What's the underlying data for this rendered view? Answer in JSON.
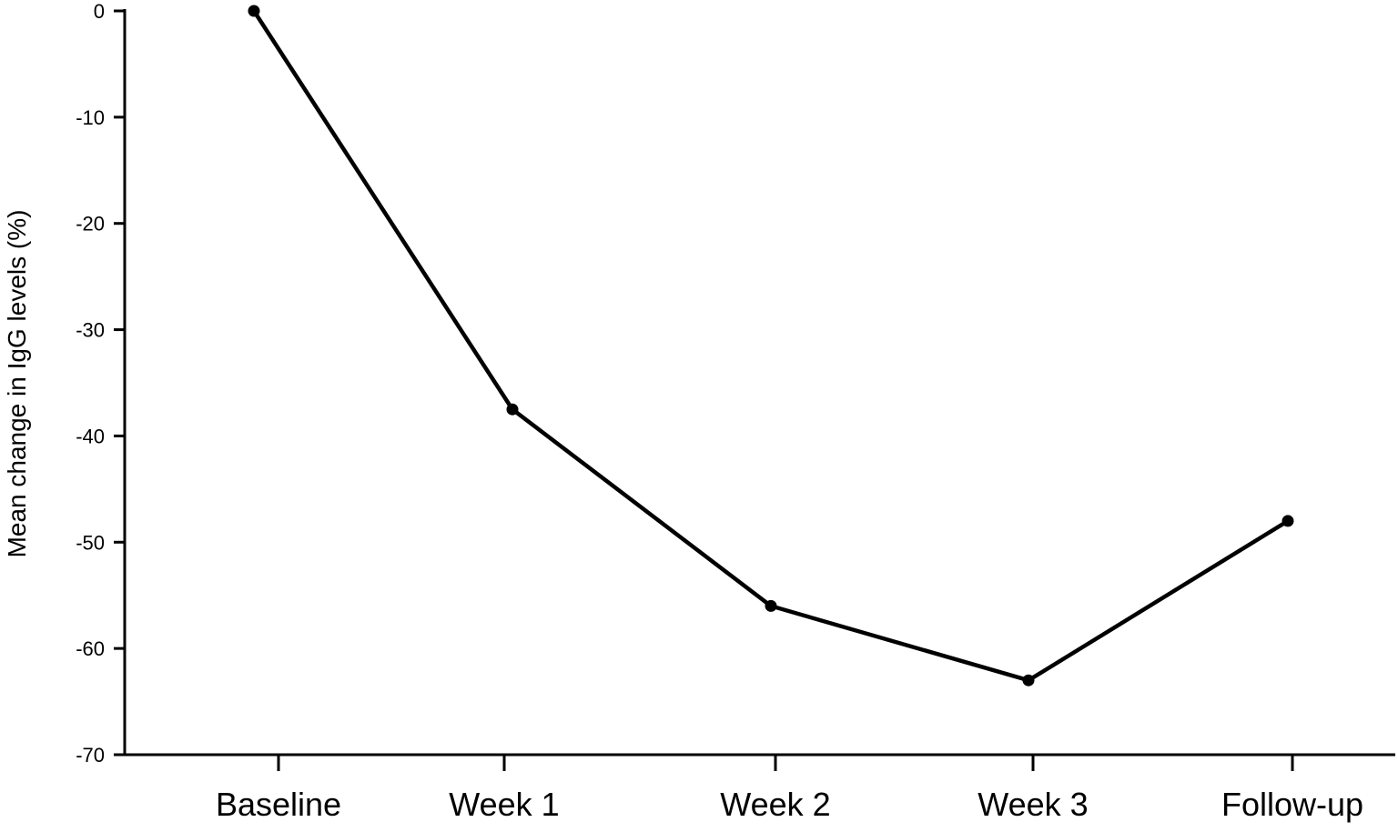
{
  "chart_data": {
    "type": "line",
    "categories": [
      "Baseline",
      "Week 1",
      "Week 2",
      "Week 3",
      "Follow-up"
    ],
    "values": [
      0,
      -37.5,
      -56,
      -63,
      -48
    ],
    "ylabel": "Mean change in IgG levels (%)",
    "xlabel": "",
    "title": "",
    "ylim": [
      -70,
      0
    ],
    "yticks": [
      0,
      -10,
      -20,
      -30,
      -40,
      -50,
      -60,
      -70
    ],
    "ytick_labels": [
      "0",
      "-10",
      "-20",
      "-30",
      "-40",
      "-50",
      "-60",
      "-70"
    ],
    "grid": false,
    "colors": {
      "line": "#000000",
      "marker": "#000000",
      "axis": "#000000"
    }
  }
}
